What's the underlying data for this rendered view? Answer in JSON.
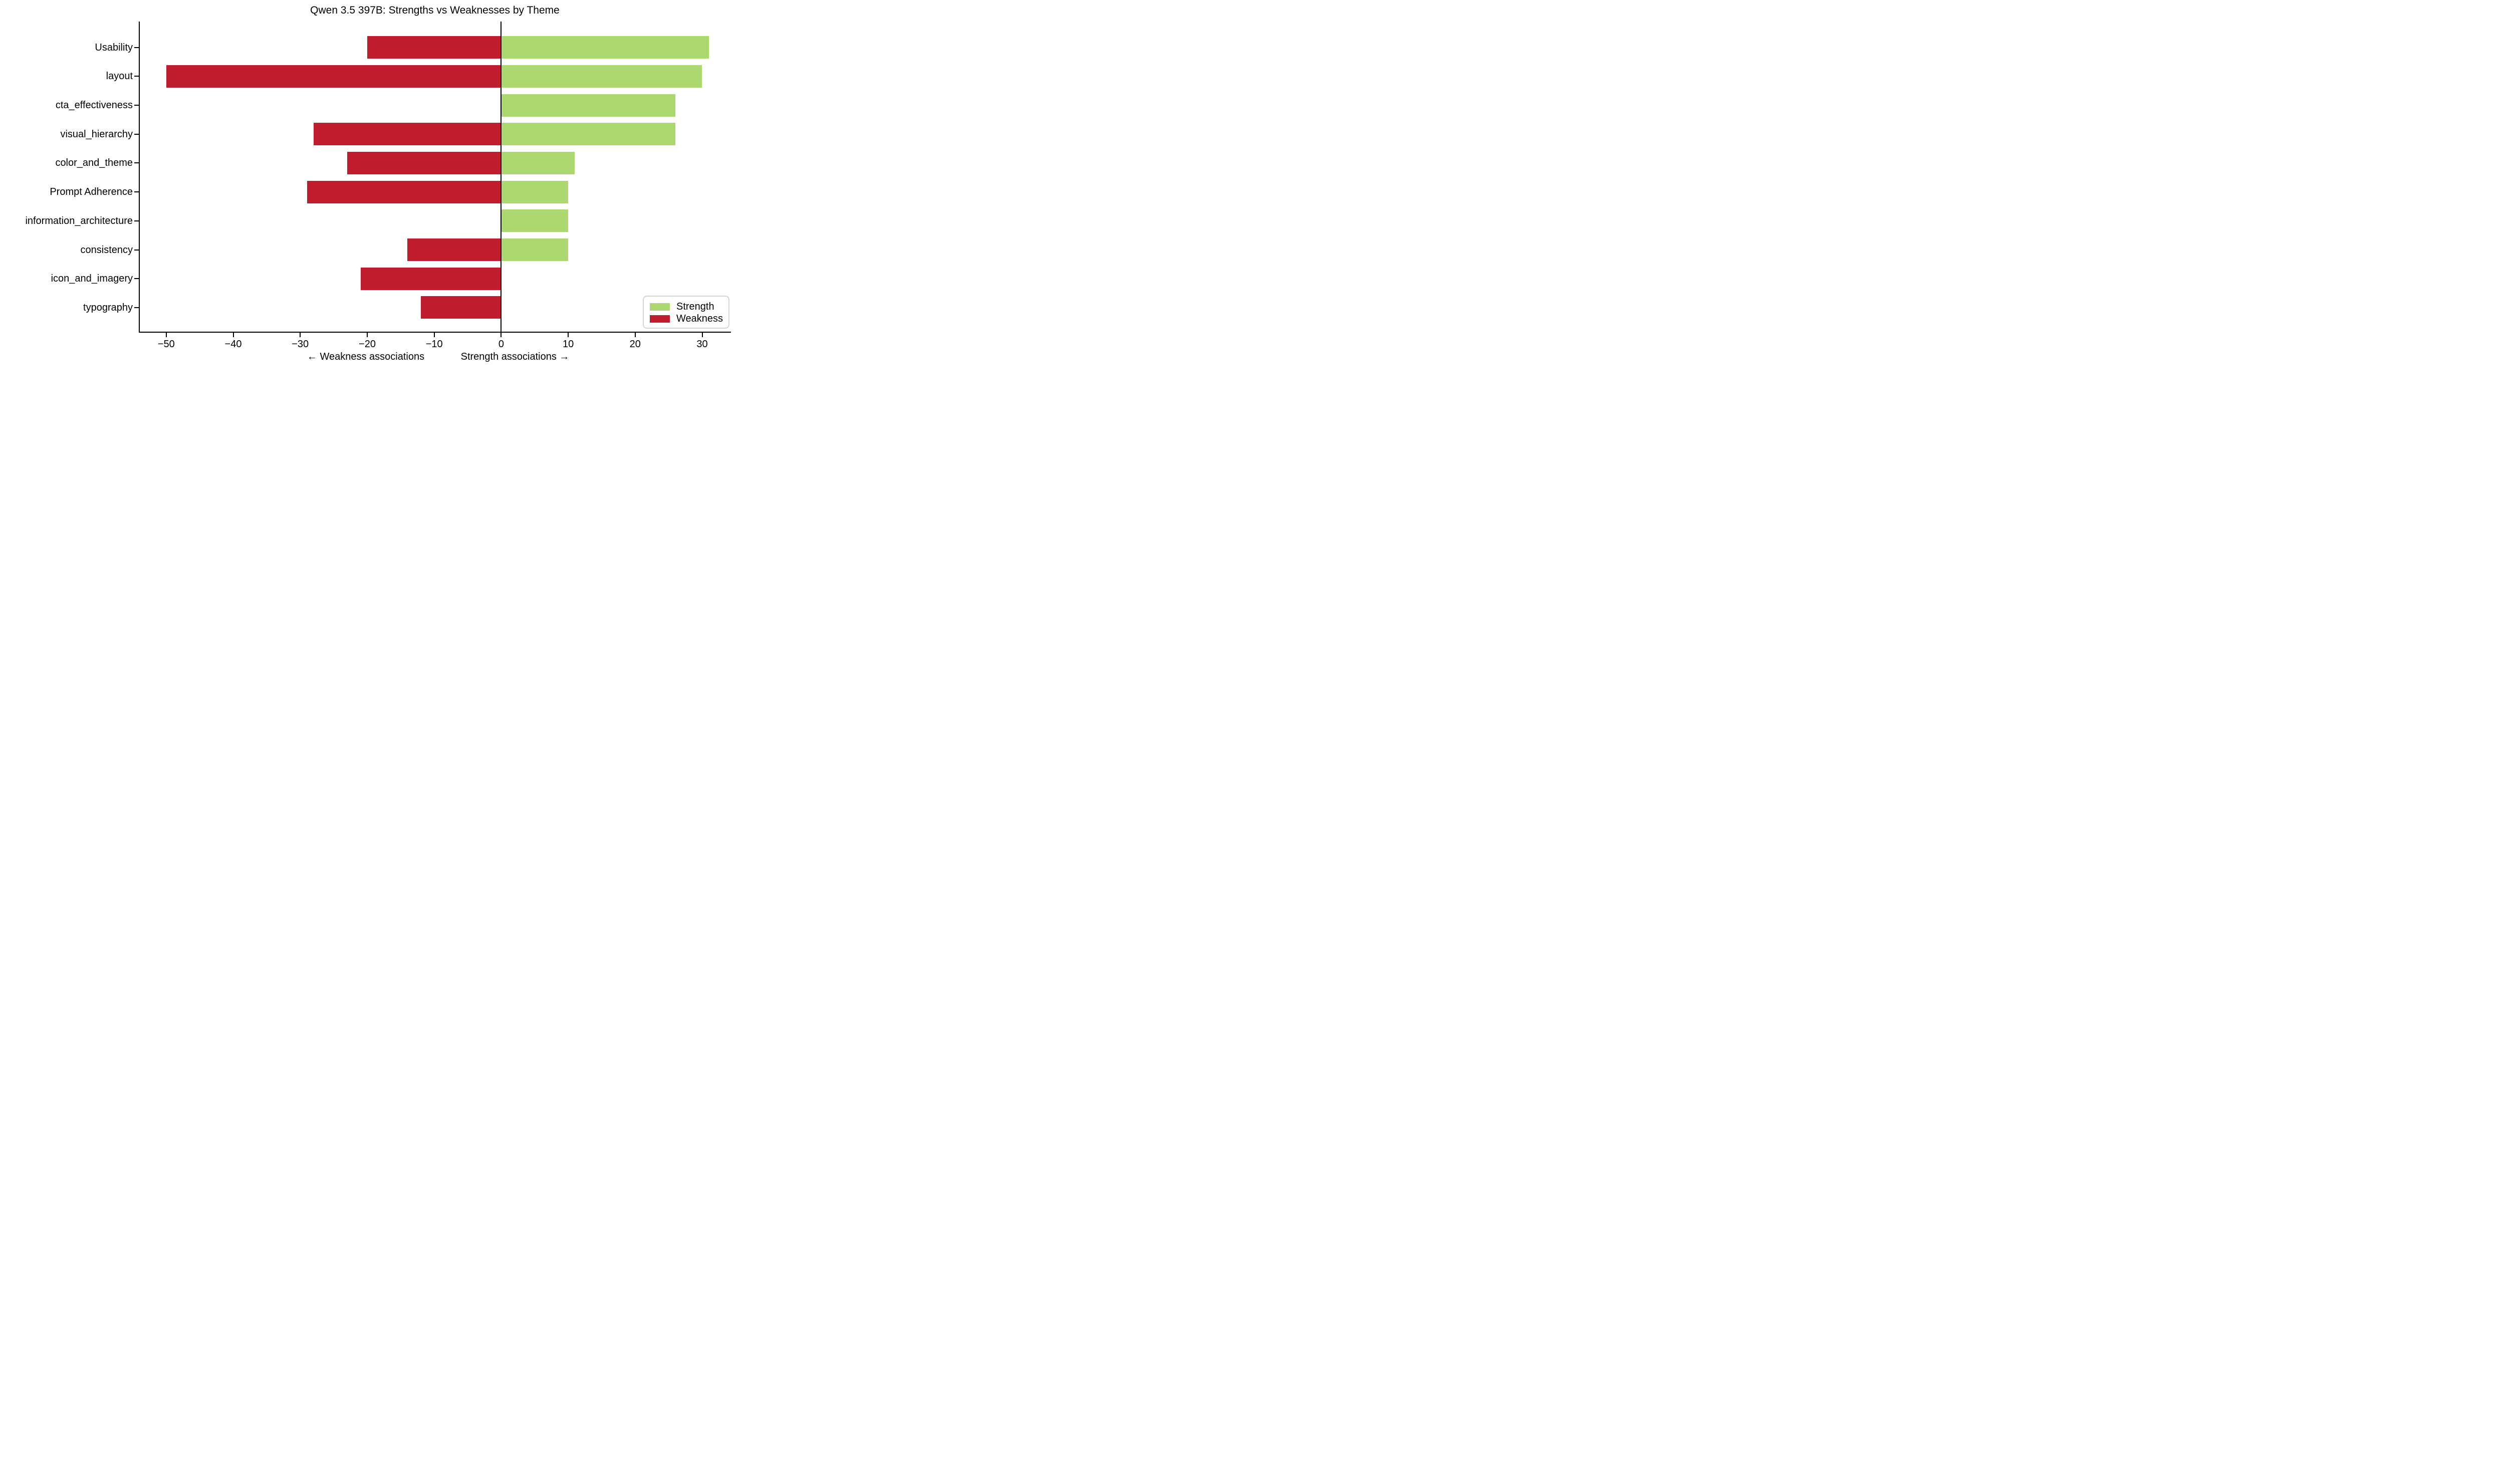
{
  "chart_data": {
    "type": "diverging_bar",
    "title": "Qwen 3.5 397B: Strengths vs Weaknesses by Theme",
    "categories": [
      "Usability",
      "layout",
      "cta_effectiveness",
      "visual_hierarchy",
      "color_and_theme",
      "Prompt Adherence",
      "information_architecture",
      "consistency",
      "icon_and_imagery",
      "typography"
    ],
    "series": [
      {
        "name": "Strength",
        "color": "#abd96f",
        "values": [
          31,
          30,
          26,
          26,
          11,
          10,
          10,
          10,
          0,
          0
        ]
      },
      {
        "name": "Weakness",
        "color": "#bf1c2e",
        "values": [
          -20,
          -50,
          0,
          -28,
          -23,
          -29,
          0,
          -14,
          -21,
          -12
        ]
      }
    ],
    "xlim": [
      -54.1,
      34.3
    ],
    "xticks": [
      -50,
      -40,
      -30,
      -20,
      -10,
      0,
      10,
      20,
      30
    ],
    "xtick_labels": [
      "−50",
      "−40",
      "−30",
      "−20",
      "−10",
      "0",
      "10",
      "20",
      "30"
    ],
    "xlabel_left": "← Weakness associations",
    "xlabel_right": "Strength associations →",
    "zero_line": true,
    "grid": false,
    "legend": {
      "position": "lower right",
      "entries": [
        {
          "label": "Strength",
          "color": "#abd96f"
        },
        {
          "label": "Weakness",
          "color": "#bf1c2e"
        }
      ]
    },
    "background_color": "#ffffff",
    "axis_color": "#000000"
  }
}
